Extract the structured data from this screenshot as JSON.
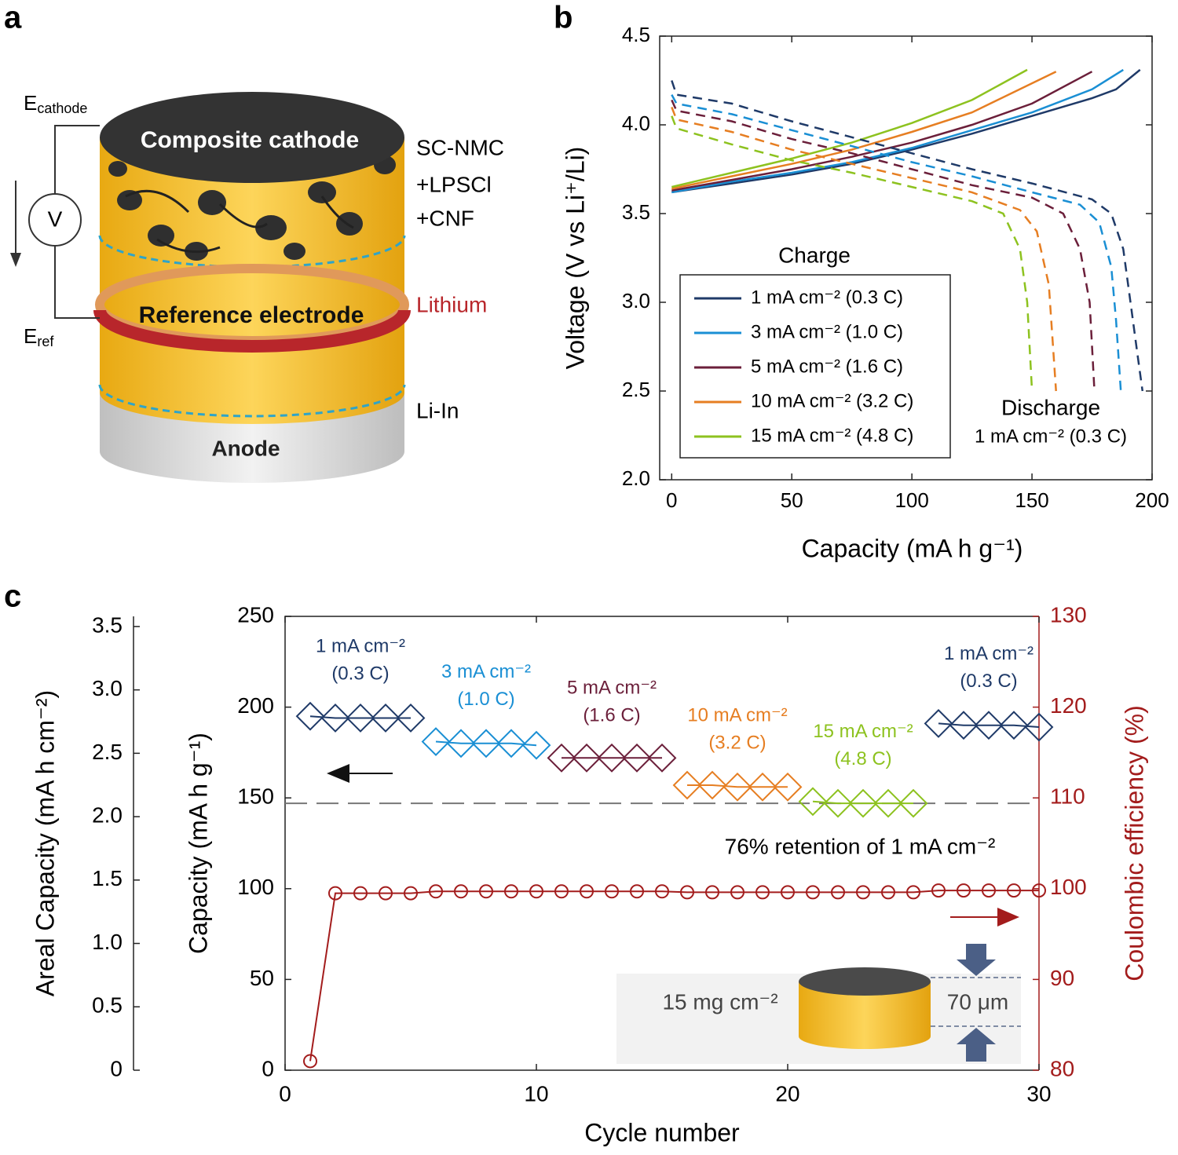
{
  "panel_labels": [
    "a",
    "b",
    "c"
  ],
  "diagram": {
    "e_cathode": {
      "text": "E",
      "sub": "cathode"
    },
    "voltmeter": "V",
    "cathode": "Composite cathode",
    "cathode_composition": [
      "SC-NMC",
      "+LPSCl",
      "+CNF"
    ],
    "reference": "Reference electrode",
    "reference_material": "Lithium",
    "e_ref": {
      "text": "E",
      "sub": "ref"
    },
    "anode": "Anode",
    "anode_material": "Li-In"
  },
  "chart_data": [
    {
      "type": "line",
      "xlabel": "Capacity (mA h g⁻¹)",
      "ylabel": "Voltage (V vs Li⁺/Li)",
      "xlim": [
        -5,
        200
      ],
      "xticks": [
        0,
        50,
        100,
        150,
        200
      ],
      "ylim": [
        2,
        4.5
      ],
      "yticks": [
        {
          "value": 2,
          "label": "2.0"
        },
        2.5,
        {
          "value": 3,
          "label": "3.0"
        },
        3.5,
        {
          "value": 4,
          "label": "4.0"
        },
        4.5
      ],
      "legend_title": "Charge",
      "legend": "lower-left",
      "annotations": [
        "Discharge",
        "1 mA cm⁻² (0.3 C)"
      ],
      "series": [
        {
          "name": "1 mA cm⁻² (0.3 C)",
          "color": "#1f3a68",
          "x": [
            0,
            25,
            50,
            75,
            100,
            125,
            150,
            175,
            185,
            195
          ],
          "values": [
            3.62,
            3.67,
            3.72,
            3.78,
            3.86,
            3.95,
            4.05,
            4.15,
            4.2,
            4.31
          ]
        },
        {
          "name": "3 mA cm⁻² (1.0 C)",
          "color": "#1a8fd4",
          "x": [
            0,
            25,
            50,
            75,
            100,
            125,
            150,
            175,
            188
          ],
          "values": [
            3.62,
            3.68,
            3.73,
            3.79,
            3.87,
            3.97,
            4.07,
            4.2,
            4.31
          ]
        },
        {
          "name": "5 mA cm⁻² (1.6 C)",
          "color": "#6b1f3a",
          "x": [
            0,
            25,
            50,
            75,
            100,
            125,
            150,
            175
          ],
          "values": [
            3.63,
            3.69,
            3.75,
            3.82,
            3.9,
            4.0,
            4.12,
            4.3
          ]
        },
        {
          "name": "10 mA cm⁻² (3.2 C)",
          "color": "#e67e22",
          "x": [
            0,
            25,
            50,
            75,
            100,
            125,
            160
          ],
          "values": [
            3.64,
            3.71,
            3.78,
            3.86,
            3.96,
            4.07,
            4.3
          ]
        },
        {
          "name": "15 mA cm⁻² (4.8 C)",
          "color": "#8dc21f",
          "x": [
            0,
            25,
            50,
            75,
            100,
            125,
            148
          ],
          "values": [
            3.65,
            3.73,
            3.81,
            3.9,
            4.01,
            4.14,
            4.31
          ]
        },
        {
          "dash": true,
          "color": "#1f3a68",
          "x": [
            0,
            2,
            25,
            50,
            75,
            100,
            125,
            150,
            175,
            183,
            188,
            191,
            194,
            196
          ],
          "values": [
            4.25,
            4.17,
            4.12,
            4.02,
            3.93,
            3.84,
            3.75,
            3.67,
            3.58,
            3.5,
            3.3,
            3.0,
            2.7,
            2.5
          ]
        },
        {
          "dash": true,
          "color": "#1a8fd4",
          "x": [
            0,
            2,
            25,
            50,
            75,
            100,
            125,
            150,
            170,
            178,
            183,
            185,
            187
          ],
          "values": [
            4.17,
            4.12,
            4.06,
            3.97,
            3.88,
            3.79,
            3.71,
            3.62,
            3.55,
            3.45,
            3.2,
            2.9,
            2.5
          ]
        },
        {
          "dash": true,
          "color": "#6b1f3a",
          "x": [
            0,
            2,
            25,
            50,
            75,
            100,
            125,
            150,
            163,
            170,
            174,
            176
          ],
          "values": [
            4.14,
            4.08,
            4.02,
            3.92,
            3.84,
            3.75,
            3.66,
            3.59,
            3.5,
            3.3,
            3.0,
            2.5
          ]
        },
        {
          "dash": true,
          "color": "#e67e22",
          "x": [
            0,
            2,
            25,
            50,
            75,
            100,
            125,
            145,
            152,
            157,
            160
          ],
          "values": [
            4.1,
            4.03,
            3.96,
            3.86,
            3.78,
            3.7,
            3.62,
            3.52,
            3.4,
            3.1,
            2.5
          ]
        },
        {
          "dash": true,
          "color": "#8dc21f",
          "x": [
            0,
            2,
            25,
            50,
            75,
            100,
            125,
            138,
            145,
            148,
            150
          ],
          "values": [
            4.05,
            3.98,
            3.89,
            3.8,
            3.73,
            3.65,
            3.57,
            3.5,
            3.3,
            3.0,
            2.5
          ]
        }
      ]
    },
    {
      "type": "scatter",
      "xlabel": "Cycle number",
      "ylabel": "Capacity (mA h g⁻¹)",
      "y2label": "Coulombic efficiency (%)",
      "xlim": [
        0,
        30
      ],
      "xticks": [
        0,
        10,
        20,
        30
      ],
      "ylim": [
        0,
        250
      ],
      "yticks": [
        0,
        50,
        100,
        150,
        200,
        250
      ],
      "y2lim": [
        80,
        130
      ],
      "y2ticks": [
        80,
        90,
        100,
        110,
        120,
        130
      ],
      "y2color": "#a31c1c",
      "areal_axis": {
        "label": "Areal Capacity (mA h cm⁻²)",
        "lim": [
          0,
          3.58
        ],
        "ticks": [
          0,
          0.5,
          {
            "value": 1,
            "label": "1.0"
          },
          1.5,
          {
            "value": 2,
            "label": "2.0"
          },
          2.5,
          {
            "value": 3,
            "label": "3.0"
          },
          3.5
        ]
      },
      "reference_line": 147,
      "annotations": [
        "76% retention of 1 mA cm⁻²"
      ],
      "inset": {
        "loading": "15 mg cm⁻²",
        "thickness": "70 μm"
      },
      "series": [
        {
          "label": [
            "1 mA cm⁻²",
            "(0.3 C)"
          ],
          "marker": "diamond",
          "color": "#1f3a68",
          "x": [
            1,
            2,
            3,
            4,
            5
          ],
          "values": [
            195,
            194,
            194,
            194,
            194
          ]
        },
        {
          "label": [
            "3 mA cm⁻²",
            "(1.0 C)"
          ],
          "marker": "diamond",
          "color": "#1a8fd4",
          "x": [
            6,
            7,
            8,
            9,
            10
          ],
          "values": [
            181,
            180,
            180,
            180,
            179
          ]
        },
        {
          "label": [
            "5 mA cm⁻²",
            "(1.6 C)"
          ],
          "marker": "diamond",
          "color": "#6b1f3a",
          "x": [
            11,
            12,
            13,
            14,
            15
          ],
          "values": [
            172,
            172,
            172,
            172,
            172
          ]
        },
        {
          "label": [
            "10 mA cm⁻²",
            "(3.2 C)"
          ],
          "marker": "diamond",
          "color": "#e67e22",
          "x": [
            16,
            17,
            18,
            19,
            20
          ],
          "values": [
            157,
            157,
            156,
            156,
            156
          ]
        },
        {
          "label": [
            "15 mA cm⁻²",
            "(4.8 C)"
          ],
          "marker": "diamond",
          "color": "#8dc21f",
          "x": [
            21,
            22,
            23,
            24,
            25
          ],
          "values": [
            148,
            147,
            147,
            147,
            147
          ]
        },
        {
          "label": [
            "1 mA cm⁻²",
            "(0.3 C)"
          ],
          "marker": "diamond",
          "color": "#1f3a68",
          "x": [
            26,
            27,
            28,
            29,
            30
          ],
          "values": [
            191,
            190,
            190,
            190,
            189
          ]
        },
        {
          "axis": "y2",
          "marker": "circle",
          "color": "#a31c1c",
          "x": [
            1,
            2,
            3,
            4,
            5,
            6,
            7,
            8,
            9,
            10,
            11,
            12,
            13,
            14,
            15,
            16,
            17,
            18,
            19,
            20,
            21,
            22,
            23,
            24,
            25,
            26,
            27,
            28,
            29,
            30
          ],
          "values": [
            81,
            99.5,
            99.5,
            99.5,
            99.5,
            99.7,
            99.7,
            99.7,
            99.7,
            99.7,
            99.7,
            99.7,
            99.7,
            99.7,
            99.7,
            99.6,
            99.6,
            99.6,
            99.6,
            99.6,
            99.6,
            99.6,
            99.6,
            99.6,
            99.6,
            99.8,
            99.8,
            99.8,
            99.8,
            99.8
          ]
        }
      ]
    }
  ]
}
